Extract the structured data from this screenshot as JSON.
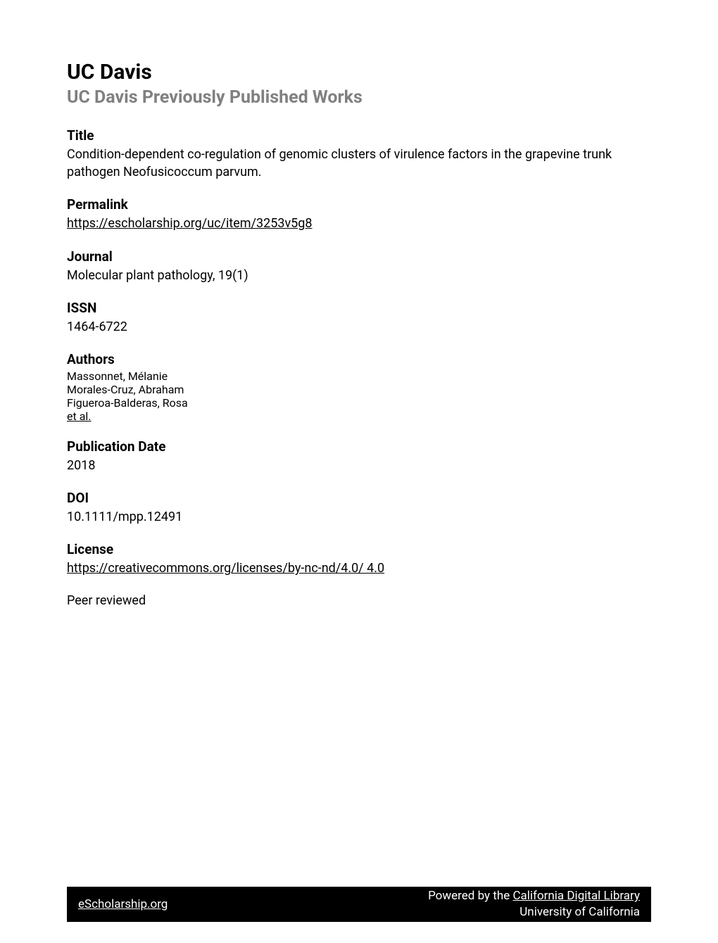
{
  "header": {
    "institution": "UC Davis",
    "collection": "UC Davis Previously Published Works"
  },
  "sections": {
    "title": {
      "label": "Title",
      "text": "Condition-dependent co-regulation of genomic clusters of virulence factors in the grapevine trunk pathogen Neofusicoccum parvum."
    },
    "permalink": {
      "label": "Permalink",
      "url": "https://escholarship.org/uc/item/3253v5g8"
    },
    "journal": {
      "label": "Journal",
      "text": "Molecular plant pathology, 19(1)"
    },
    "issn": {
      "label": "ISSN",
      "text": "1464-6722"
    },
    "authors": {
      "label": "Authors",
      "items": [
        "Massonnet, Mélanie",
        "Morales-Cruz, Abraham",
        "Figueroa-Balderas, Rosa"
      ],
      "etAl": "et al."
    },
    "publicationDate": {
      "label": "Publication Date",
      "text": "2018"
    },
    "doi": {
      "label": "DOI",
      "text": "10.1111/mpp.12491"
    },
    "license": {
      "label": "License",
      "url": "https://creativecommons.org/licenses/by-nc-nd/4.0/ 4.0"
    },
    "peerReviewed": "Peer reviewed"
  },
  "footer": {
    "left": "eScholarship.org",
    "rightPrefix": "Powered by the ",
    "rightLink": "California Digital Library",
    "rightLine2": "University of California"
  },
  "styling": {
    "pageWidth": 1020,
    "pageHeight": 1340,
    "backgroundColor": "#ffffff",
    "textColor": "#000000",
    "collectionColor": "#808080",
    "footerBg": "#000000",
    "footerColor": "#ffffff",
    "institutionFontSize": 30,
    "collectionFontSize": 25,
    "labelFontSize": 19,
    "bodyFontSize": 18,
    "footerFontSize": 17,
    "contentPaddingTop": 85,
    "contentPaddingSide": 95,
    "sectionSpacing": 22
  }
}
